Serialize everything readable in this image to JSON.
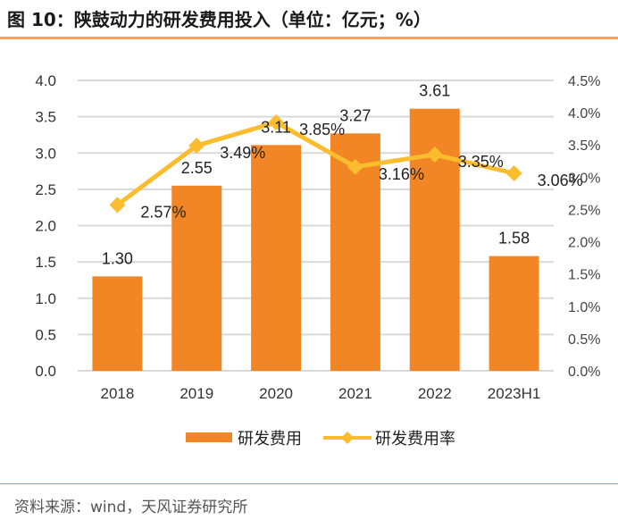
{
  "title": "图 10：陕鼓动力的研发费用投入（单位：亿元；%）",
  "source": "资料来源：wind，天风证券研究所",
  "colors": {
    "bar": "#f28524",
    "line": "#fbbd2e",
    "grid": "#d9d9d9",
    "rule": "#f28c28"
  },
  "chart_data": {
    "type": "bar+line",
    "title": "陕鼓动力的研发费用投入（单位：亿元；%）",
    "categories": [
      "2018",
      "2019",
      "2020",
      "2021",
      "2022",
      "2023H1"
    ],
    "series": [
      {
        "name": "研发费用",
        "type": "bar",
        "axis": "left",
        "values": [
          1.3,
          2.55,
          3.11,
          3.27,
          3.61,
          1.58
        ],
        "labels": [
          "1.30",
          "2.55",
          "3.11",
          "3.27",
          "3.61",
          "1.58"
        ]
      },
      {
        "name": "研发费用率",
        "type": "line",
        "axis": "right",
        "marker": "diamond",
        "values": [
          2.57,
          3.49,
          3.85,
          3.16,
          3.35,
          3.06
        ],
        "labels": [
          "2.57%",
          "3.49%",
          "3.85%",
          "3.16%",
          "3.35%",
          "3.06%"
        ]
      }
    ],
    "y_left": {
      "range": [
        0,
        4.0
      ],
      "ticks": [
        "0.0",
        "0.5",
        "1.0",
        "1.5",
        "2.0",
        "2.5",
        "3.0",
        "3.5",
        "4.0"
      ]
    },
    "y_right": {
      "range": [
        0,
        4.5
      ],
      "ticks": [
        "0.0%",
        "0.5%",
        "1.0%",
        "1.5%",
        "2.0%",
        "2.5%",
        "3.0%",
        "3.5%",
        "4.0%",
        "4.5%"
      ]
    },
    "grid": true,
    "legend": "bottom-center"
  }
}
